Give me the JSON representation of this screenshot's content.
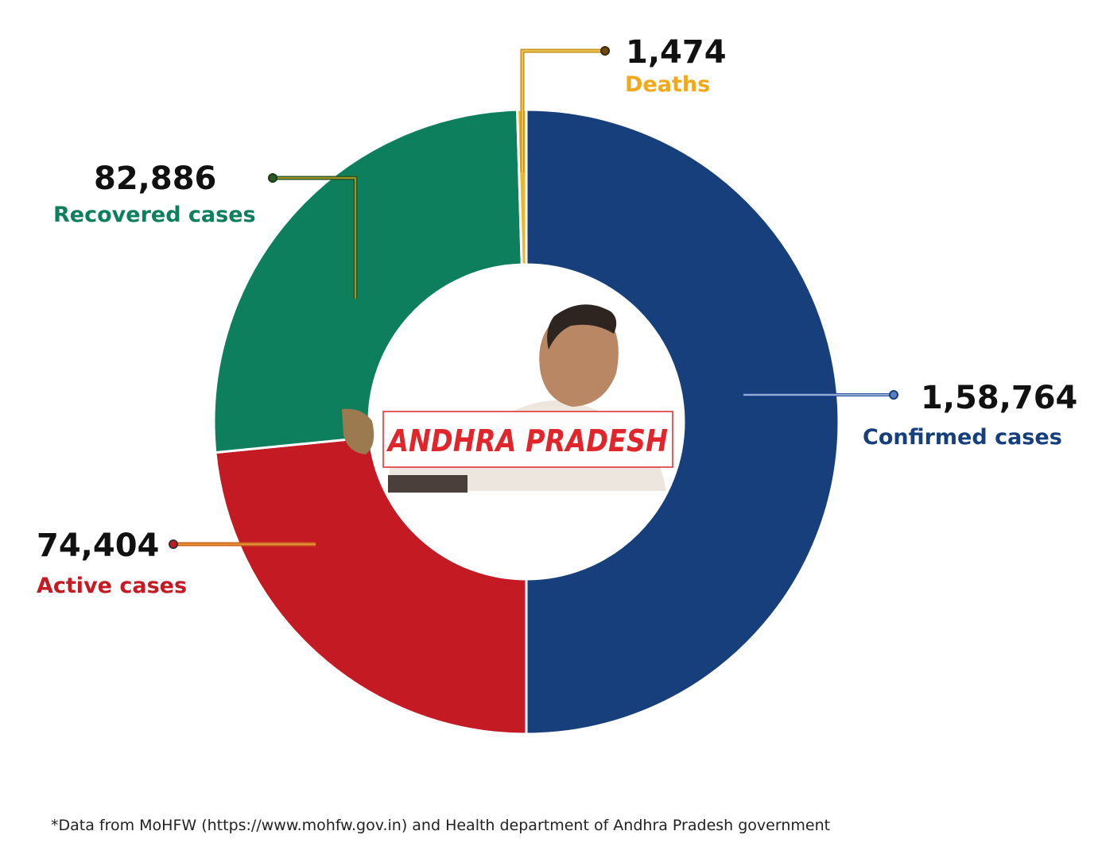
{
  "chart_data": {
    "type": "donut",
    "center_label": "ANDHRA PRADESH",
    "slices": [
      {
        "name": "Confirmed cases",
        "value": 158764,
        "value_label": "1,58,764",
        "color": "#163f7c",
        "leader_color": "#2e56a0"
      },
      {
        "name": "Active cases",
        "value": 74404,
        "value_label": "74,404",
        "color": "#c41a23",
        "leader_color": "#c8651a"
      },
      {
        "name": "Recovered cases",
        "value": 82886,
        "value_label": "82,886",
        "color": "#0d7f5d",
        "leader_color": "#2b5a24"
      },
      {
        "name": "Deaths",
        "value": 1474,
        "value_label": "1,474",
        "color": "#f0b429",
        "leader_color": "#c89215"
      }
    ]
  },
  "colors": {
    "confirmed_label": "#163f7c",
    "active_label": "#c41a23",
    "recovered_label": "#0d7f5d",
    "deaths_label": "#f0a81c"
  },
  "footnote": "*Data from MoHFW (https://www.mohfw.gov.in) and Health department of Andhra Pradesh government"
}
